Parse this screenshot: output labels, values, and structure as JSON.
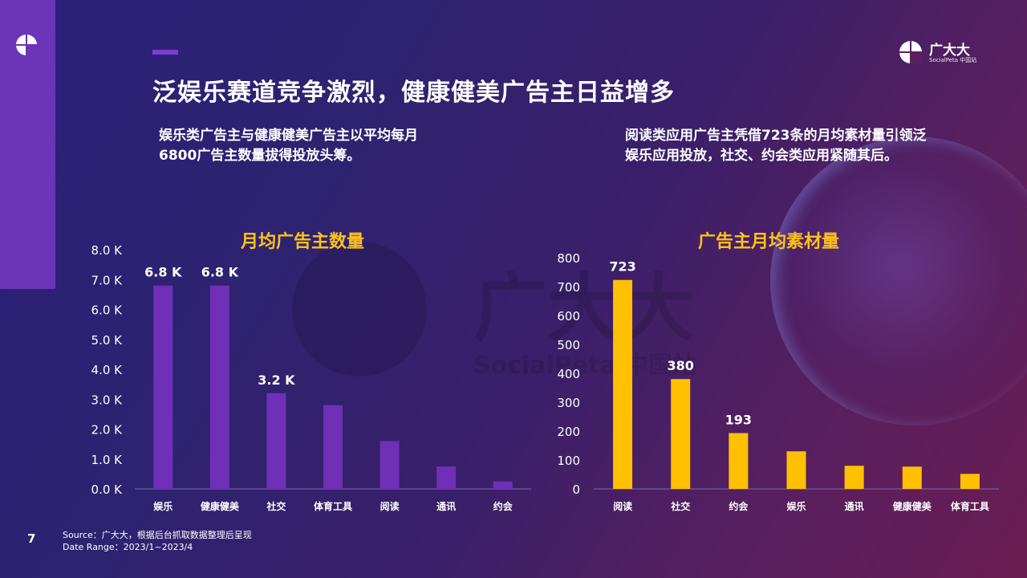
{
  "title": "泛娱乐赛道竞争激烈，健康健美广告主日益增多",
  "notes": {
    "left": "娱乐类广告主与健康健美广告主以平均每月6800广告主数量拔得投放头筹。",
    "right": "阅读类应用广告主凭借723条的月均素材量引领泛娱乐应用投放，社交、约会类应用紧随其后。"
  },
  "brand": {
    "name": "广大大",
    "sub": "SocialPeta 中国站"
  },
  "watermark": {
    "name": "广大大",
    "sub": "SocialPeta 中国站"
  },
  "page_number": "7",
  "source": {
    "line1": "Source：广大大，根据后台抓取数据整理后呈现",
    "line2": "Date Range：2023/1~2023/4"
  },
  "colors": {
    "purple_bar": "#6f2fb6",
    "yellow_bar": "#ffc000",
    "chart_title": "#ffc21a"
  },
  "chart_data": [
    {
      "type": "bar",
      "title": "月均广告主数量",
      "categories": [
        "娱乐",
        "健康健美",
        "社交",
        "体育工具",
        "阅读",
        "通讯",
        "约会"
      ],
      "values": [
        6800,
        6800,
        3200,
        2800,
        1600,
        750,
        250
      ],
      "data_labels": [
        "6.8 K",
        "6.8 K",
        "3.2 K",
        "",
        "",
        "",
        ""
      ],
      "y_ticks": [
        "0.0 K",
        "1.0 K",
        "2.0 K",
        "3.0 K",
        "4.0 K",
        "5.0 K",
        "6.0 K",
        "7.0 K",
        "8.0 K"
      ],
      "ylim": [
        0,
        8000
      ],
      "color": "#6f2fb6"
    },
    {
      "type": "bar",
      "title": "广告主月均素材量",
      "categories": [
        "阅读",
        "社交",
        "约会",
        "娱乐",
        "通讯",
        "健康健美",
        "体育工具"
      ],
      "values": [
        723,
        380,
        193,
        130,
        80,
        77,
        52
      ],
      "data_labels": [
        "723",
        "380",
        "193",
        "",
        "",
        "",
        ""
      ],
      "y_ticks": [
        "0",
        "100",
        "200",
        "300",
        "400",
        "500",
        "600",
        "700",
        "800"
      ],
      "ylim": [
        0,
        800
      ],
      "color": "#ffc000"
    }
  ]
}
